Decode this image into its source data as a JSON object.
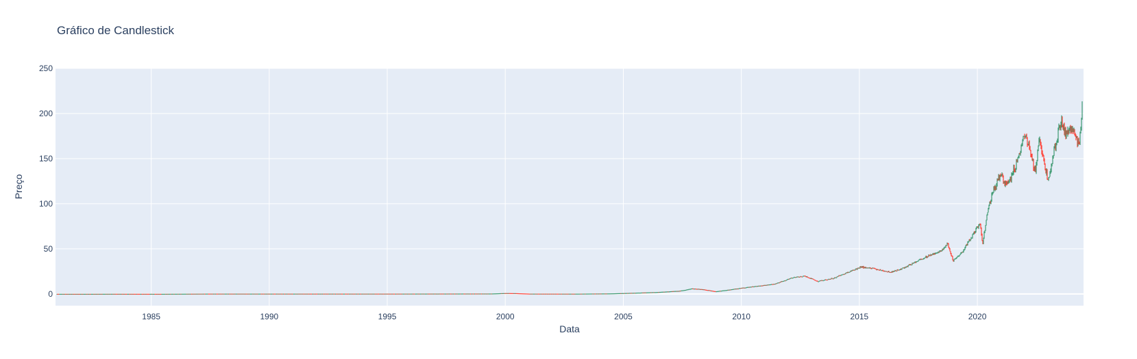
{
  "chart_data": {
    "type": "candlestick",
    "title": "Gráfico de Candlestick",
    "xlabel": "Data",
    "ylabel": "Preço",
    "xlim": [
      "1980-12-12",
      "2024-07-01"
    ],
    "ylim": [
      -13,
      250
    ],
    "x_ticks": [
      "1985",
      "1990",
      "1995",
      "2000",
      "2005",
      "2010",
      "2015",
      "2020"
    ],
    "y_ticks": [
      "0",
      "50",
      "100",
      "150",
      "200",
      "250"
    ],
    "increasing_color": "#3d9970",
    "decreasing_color": "#ff4136",
    "grid": true,
    "legend": "none",
    "x": [
      "1980-12-12",
      "1982-06-01",
      "1983-06-01",
      "1985-06-01",
      "1987-06-01",
      "1990-06-01",
      "1995-06-01",
      "1999-06-01",
      "2000-01-01",
      "2000-06-01",
      "2001-01-01",
      "2003-01-01",
      "2004-06-01",
      "2005-06-01",
      "2006-06-01",
      "2007-06-01",
      "2007-12-01",
      "2008-06-01",
      "2008-12-01",
      "2009-06-01",
      "2010-06-01",
      "2011-06-01",
      "2012-03-01",
      "2012-09-01",
      "2013-04-01",
      "2013-12-01",
      "2014-06-01",
      "2015-02-01",
      "2015-08-01",
      "2016-05-01",
      "2016-12-01",
      "2017-06-01",
      "2017-12-01",
      "2018-06-01",
      "2018-10-01",
      "2018-12-24",
      "2019-06-01",
      "2019-12-01",
      "2020-02-15",
      "2020-03-23",
      "2020-06-01",
      "2020-09-01",
      "2021-01-01",
      "2021-03-01",
      "2021-06-01",
      "2021-09-01",
      "2022-01-03",
      "2022-03-15",
      "2022-06-15",
      "2022-08-15",
      "2023-01-03",
      "2023-04-01",
      "2023-07-31",
      "2023-10-01",
      "2024-01-01",
      "2024-04-19",
      "2024-06-01",
      "2024-06-25"
    ],
    "close": [
      0.1,
      0.1,
      0.15,
      0.1,
      0.3,
      0.3,
      0.3,
      0.4,
      0.9,
      0.8,
      0.3,
      0.25,
      0.5,
      1.2,
      2.0,
      3.5,
      6.0,
      5.0,
      2.8,
      4.5,
      8.0,
      11.0,
      18.0,
      20.0,
      14.0,
      17.5,
      23.0,
      30.0,
      28.0,
      24.0,
      29.0,
      36.0,
      42.0,
      47.0,
      55.0,
      37.0,
      48.0,
      70.0,
      78.0,
      57.0,
      88.0,
      115.0,
      132.0,
      122.0,
      128.0,
      145.0,
      178.0,
      160.0,
      135.0,
      170.0,
      126.0,
      160.0,
      195.0,
      175.0,
      185.0,
      165.0,
      195.0,
      230.0
    ]
  }
}
